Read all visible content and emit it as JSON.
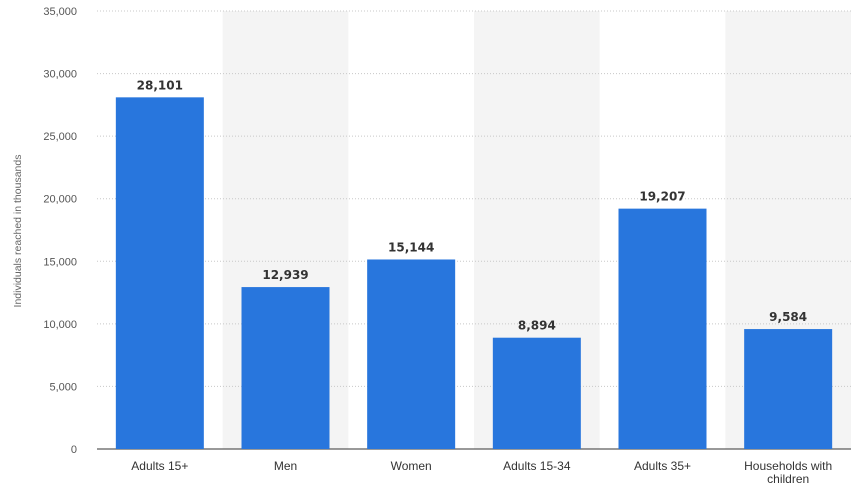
{
  "chart_data": {
    "type": "bar",
    "title": "",
    "xlabel": "",
    "ylabel": "Individuals reached in thousands",
    "ylim": [
      0,
      35000
    ],
    "yticks": [
      0,
      5000,
      10000,
      15000,
      20000,
      25000,
      30000,
      35000
    ],
    "ytick_labels": [
      "0",
      "5,000",
      "10,000",
      "15,000",
      "20,000",
      "25,000",
      "30,000",
      "35,000"
    ],
    "categories": [
      "Adults 15+",
      "Men",
      "Women",
      "Adults 15-34",
      "Adults 35+",
      "Households with children"
    ],
    "category_display": [
      [
        "Adults 15+"
      ],
      [
        "Men"
      ],
      [
        "Women"
      ],
      [
        "Adults 15-34"
      ],
      [
        "Adults 35+"
      ],
      [
        "Households with",
        "children"
      ]
    ],
    "values": [
      28101,
      12939,
      15144,
      8894,
      19207,
      9584
    ],
    "value_labels": [
      "28,101",
      "12,939",
      "15,144",
      "8,894",
      "19,207",
      "9,584"
    ],
    "grid": true,
    "bar_color": "#2876dd",
    "band_color": "#f4f4f4",
    "grid_color": "#c8c8c8"
  }
}
